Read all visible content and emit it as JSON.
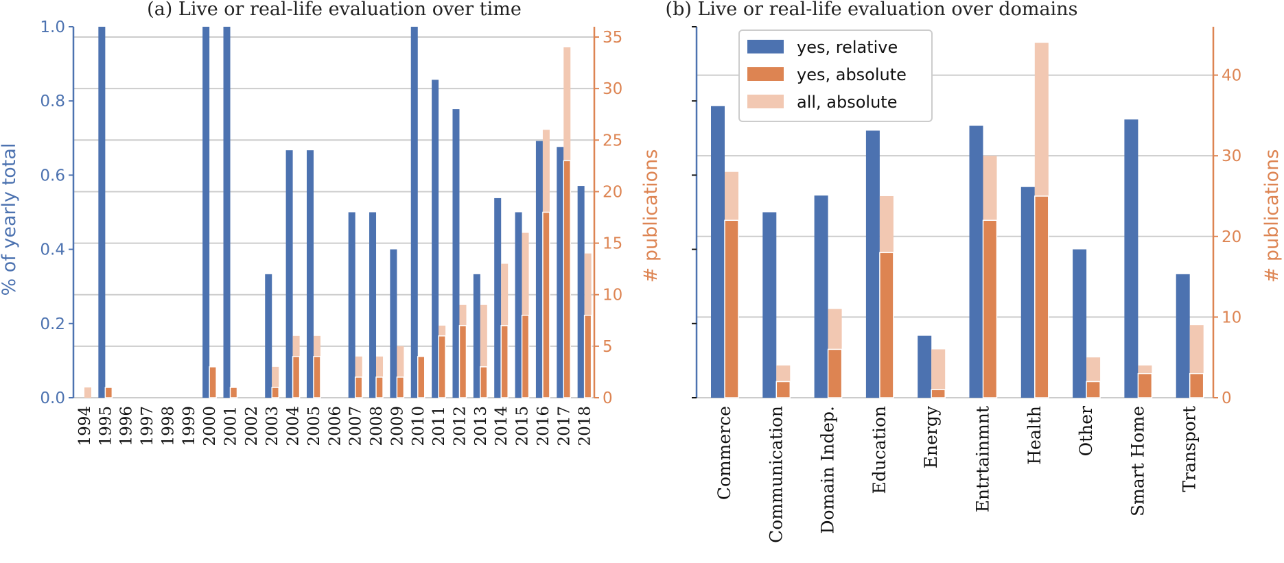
{
  "colors": {
    "relative": "#4c72b0",
    "absolute": "#dd8452",
    "all": "#f2c8b2",
    "grid": "#cccccc"
  },
  "chart_data": [
    {
      "type": "bar",
      "title": "(a) Live or real-life evaluation over time",
      "ylabel_left": "% of yearly total",
      "ylabel_right": "# publications",
      "ylim_left": [
        0,
        1.0
      ],
      "ylim_right": [
        0,
        36
      ],
      "yticks_left": [
        "0.0",
        "0.2",
        "0.4",
        "0.6",
        "0.8",
        "1.0"
      ],
      "yticks_right": [
        "0",
        "5",
        "10",
        "15",
        "20",
        "25",
        "30",
        "35"
      ],
      "grid": "horizontal, right axis",
      "categories": [
        "1994",
        "1995",
        "1996",
        "1997",
        "1998",
        "1999",
        "2000",
        "2001",
        "2002",
        "2003",
        "2004",
        "2005",
        "2006",
        "2007",
        "2008",
        "2009",
        "2010",
        "2011",
        "2012",
        "2013",
        "2014",
        "2015",
        "2016",
        "2017",
        "2018"
      ],
      "series": [
        {
          "name": "yes, relative",
          "axis": "left",
          "values": [
            0,
            1.0,
            0,
            0,
            0,
            0,
            1.0,
            1.0,
            0,
            0.333,
            0.667,
            0.667,
            0,
            0.5,
            0.5,
            0.4,
            1.0,
            0.857,
            0.778,
            0.333,
            0.538,
            0.5,
            0.692,
            0.676,
            0.571
          ]
        },
        {
          "name": "yes, absolute",
          "axis": "right",
          "values": [
            0,
            1,
            0,
            0,
            0,
            0,
            3,
            1,
            0,
            1,
            4,
            4,
            0,
            2,
            2,
            2,
            4,
            6,
            7,
            3,
            7,
            8,
            18,
            23,
            8
          ]
        },
        {
          "name": "all, absolute",
          "axis": "right",
          "values": [
            1,
            1,
            0,
            0,
            0,
            0,
            3,
            1,
            0,
            3,
            6,
            6,
            0,
            4,
            4,
            5,
            4,
            7,
            9,
            9,
            13,
            16,
            26,
            34,
            14
          ]
        }
      ]
    },
    {
      "type": "bar",
      "title": "(b) Live or real-life evaluation over domains",
      "ylabel_right": "# publications",
      "ylim_left": [
        0,
        1.0
      ],
      "ylim_right": [
        0,
        46
      ],
      "yticks_right": [
        "0",
        "10",
        "20",
        "30",
        "40"
      ],
      "grid": "horizontal, right axis",
      "legend_position": "top-left",
      "categories": [
        "Commerce",
        "Communication",
        "Domain Indep.",
        "Education",
        "Energy",
        "Entrtainmnt",
        "Health",
        "Other",
        "Smart Home",
        "Transport"
      ],
      "series": [
        {
          "name": "yes, relative",
          "axis": "left",
          "values": [
            0.786,
            0.5,
            0.545,
            0.72,
            0.167,
            0.733,
            0.568,
            0.4,
            0.75,
            0.333
          ]
        },
        {
          "name": "yes, absolute",
          "axis": "right",
          "values": [
            22,
            2,
            6,
            18,
            1,
            22,
            25,
            2,
            3,
            3
          ]
        },
        {
          "name": "all, absolute",
          "axis": "right",
          "values": [
            28,
            4,
            11,
            25,
            6,
            30,
            44,
            5,
            4,
            9
          ]
        }
      ]
    }
  ]
}
